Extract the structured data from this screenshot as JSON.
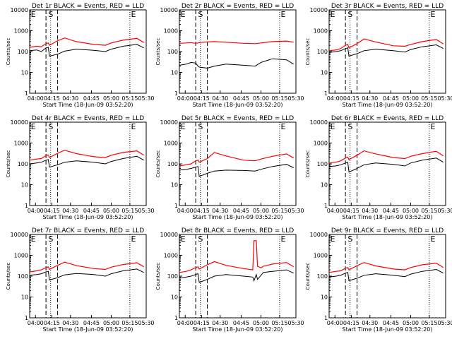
{
  "figure": {
    "xlabel": "Start Time (18-Jun-09 03:52:20)",
    "ylabel": "Counts/sec",
    "colors": {
      "events": "#000000",
      "lld": "#ff0000",
      "frame": "#000000"
    }
  },
  "chart_data": [
    {
      "type": "line",
      "title": "Det 1r BLACK = Events, RED = LLD",
      "x_ticks": [
        "04:00",
        "04:15",
        "04:30",
        "04:45",
        "05:00",
        "05:15",
        "05:30"
      ],
      "y_ticks": [
        "1",
        "10",
        "100",
        "1000",
        "10000"
      ],
      "ylim": [
        1,
        10000
      ],
      "yscale": "log",
      "markers": [
        "E",
        "S",
        "E"
      ],
      "events_series": {
        "name": "Events",
        "x": [
          0,
          6,
          10,
          14,
          16,
          17,
          24,
          30,
          40,
          55,
          65,
          70,
          80,
          92,
          98
        ],
        "y": [
          110,
          120,
          100,
          150,
          160,
          60,
          75,
          105,
          130,
          115,
          100,
          130,
          180,
          220,
          150
        ]
      },
      "lld_series": {
        "name": "LLD",
        "x": [
          0,
          6,
          10,
          14,
          16,
          17,
          24,
          30,
          40,
          55,
          65,
          70,
          80,
          92,
          98
        ],
        "y": [
          160,
          180,
          170,
          240,
          260,
          200,
          330,
          450,
          300,
          220,
          200,
          260,
          350,
          430,
          270
        ]
      }
    },
    {
      "type": "line",
      "title": "Det 2r BLACK = Events, RED = LLD",
      "x_ticks": [
        "04:00",
        "04:15",
        "04:30",
        "04:45",
        "05:00",
        "05:15",
        "05:30"
      ],
      "y_ticks": [
        "1",
        "10",
        "100",
        "1000",
        "10000"
      ],
      "ylim": [
        1,
        10000
      ],
      "yscale": "log",
      "markers": [
        "E",
        "S",
        "E"
      ],
      "events_series": {
        "name": "Events",
        "x": [
          0,
          6,
          10,
          14,
          16,
          17,
          24,
          30,
          40,
          55,
          65,
          70,
          80,
          92,
          98
        ],
        "y": [
          22,
          25,
          30,
          28,
          20,
          18,
          16,
          20,
          25,
          22,
          20,
          30,
          45,
          40,
          25
        ]
      },
      "lld_series": {
        "name": "LLD",
        "x": [
          0,
          6,
          10,
          14,
          16,
          17,
          24,
          30,
          40,
          55,
          65,
          70,
          80,
          92,
          98
        ],
        "y": [
          250,
          260,
          270,
          250,
          260,
          270,
          290,
          300,
          280,
          250,
          240,
          260,
          300,
          320,
          280
        ]
      }
    },
    {
      "type": "line",
      "title": "Det 3r BLACK = Events, RED = LLD",
      "x_ticks": [
        "04:00",
        "04:15",
        "04:30",
        "04:45",
        "05:00",
        "05:15",
        "05:30"
      ],
      "y_ticks": [
        "1",
        "10",
        "100",
        "1000",
        "10000"
      ],
      "ylim": [
        1,
        10000
      ],
      "yscale": "log",
      "markers": [
        "E",
        "S",
        "E"
      ],
      "events_series": {
        "name": "Events",
        "x": [
          0,
          6,
          10,
          14,
          16,
          17,
          24,
          30,
          40,
          55,
          65,
          70,
          80,
          92,
          98
        ],
        "y": [
          90,
          100,
          110,
          140,
          150,
          60,
          80,
          110,
          130,
          110,
          95,
          125,
          170,
          210,
          140
        ]
      },
      "lld_series": {
        "name": "LLD",
        "x": [
          0,
          6,
          10,
          14,
          16,
          17,
          24,
          30,
          40,
          55,
          65,
          70,
          80,
          92,
          98
        ],
        "y": [
          110,
          120,
          140,
          200,
          220,
          150,
          240,
          400,
          290,
          190,
          180,
          220,
          300,
          380,
          230
        ]
      }
    },
    {
      "type": "line",
      "title": "Det 4r BLACK = Events, RED = LLD",
      "x_ticks": [
        "04:00",
        "04:15",
        "04:30",
        "04:45",
        "05:00",
        "05:15",
        "05:30"
      ],
      "y_ticks": [
        "1",
        "10",
        "100",
        "1000",
        "10000"
      ],
      "ylim": [
        1,
        10000
      ],
      "yscale": "log",
      "markers": [
        "E",
        "S",
        "E"
      ],
      "events_series": {
        "name": "Events",
        "x": [
          0,
          6,
          10,
          14,
          16,
          17,
          24,
          30,
          40,
          55,
          65,
          70,
          80,
          92,
          98
        ],
        "y": [
          100,
          110,
          120,
          150,
          160,
          70,
          90,
          120,
          140,
          120,
          100,
          130,
          180,
          230,
          150
        ]
      },
      "lld_series": {
        "name": "LLD",
        "x": [
          0,
          6,
          10,
          14,
          16,
          17,
          24,
          30,
          40,
          55,
          65,
          70,
          80,
          92,
          98
        ],
        "y": [
          150,
          170,
          180,
          250,
          270,
          200,
          320,
          450,
          310,
          220,
          200,
          260,
          350,
          420,
          260
        ]
      }
    },
    {
      "type": "line",
      "title": "Det 5r BLACK = Events, RED = LLD",
      "x_ticks": [
        "04:00",
        "04:15",
        "04:30",
        "04:45",
        "05:00",
        "05:15",
        "05:30"
      ],
      "y_ticks": [
        "1",
        "10",
        "100",
        "1000",
        "10000"
      ],
      "ylim": [
        1,
        10000
      ],
      "yscale": "log",
      "markers": [
        "E",
        "S",
        "E"
      ],
      "events_series": {
        "name": "Events",
        "x": [
          0,
          6,
          10,
          14,
          16,
          17,
          24,
          30,
          40,
          55,
          65,
          70,
          80,
          92,
          98
        ],
        "y": [
          50,
          55,
          60,
          70,
          75,
          25,
          35,
          45,
          50,
          48,
          45,
          55,
          75,
          95,
          65
        ]
      },
      "lld_series": {
        "name": "LLD",
        "x": [
          0,
          6,
          10,
          14,
          16,
          17,
          24,
          30,
          40,
          55,
          65,
          70,
          80,
          92,
          98
        ],
        "y": [
          80,
          90,
          100,
          140,
          150,
          120,
          180,
          350,
          240,
          150,
          140,
          170,
          230,
          300,
          190
        ]
      }
    },
    {
      "type": "line",
      "title": "Det 6r BLACK = Events, RED = LLD",
      "x_ticks": [
        "04:00",
        "04:15",
        "04:30",
        "04:45",
        "05:00",
        "05:15",
        "05:30"
      ],
      "y_ticks": [
        "1",
        "10",
        "100",
        "1000",
        "10000"
      ],
      "ylim": [
        1,
        10000
      ],
      "yscale": "log",
      "markers": [
        "E",
        "S",
        "E"
      ],
      "events_series": {
        "name": "Events",
        "x": [
          0,
          6,
          10,
          14,
          16,
          17,
          24,
          30,
          40,
          55,
          65,
          70,
          80,
          92,
          98
        ],
        "y": [
          75,
          80,
          90,
          110,
          120,
          40,
          60,
          90,
          110,
          95,
          80,
          110,
          150,
          190,
          120
        ]
      },
      "lld_series": {
        "name": "LLD",
        "x": [
          0,
          6,
          10,
          14,
          16,
          17,
          24,
          30,
          40,
          55,
          65,
          70,
          80,
          92,
          98
        ],
        "y": [
          110,
          120,
          140,
          190,
          210,
          160,
          260,
          420,
          300,
          200,
          180,
          230,
          310,
          400,
          240
        ]
      }
    },
    {
      "type": "line",
      "title": "Det 7r BLACK = Events, RED = LLD",
      "x_ticks": [
        "04:00",
        "04:15",
        "04:30",
        "04:45",
        "05:00",
        "05:15",
        "05:30"
      ],
      "y_ticks": [
        "1",
        "10",
        "100",
        "1000",
        "10000"
      ],
      "ylim": [
        1,
        10000
      ],
      "yscale": "log",
      "markers": [
        "E",
        "S",
        "E"
      ],
      "events_series": {
        "name": "Events",
        "x": [
          0,
          6,
          10,
          14,
          16,
          17,
          24,
          30,
          40,
          55,
          65,
          70,
          80,
          92,
          98
        ],
        "y": [
          110,
          120,
          130,
          160,
          170,
          65,
          85,
          115,
          135,
          120,
          100,
          130,
          180,
          220,
          150
        ]
      },
      "lld_series": {
        "name": "LLD",
        "x": [
          0,
          6,
          10,
          14,
          16,
          17,
          24,
          30,
          40,
          55,
          65,
          70,
          80,
          92,
          98
        ],
        "y": [
          160,
          180,
          200,
          260,
          280,
          210,
          330,
          470,
          320,
          230,
          210,
          270,
          360,
          440,
          280
        ]
      }
    },
    {
      "type": "line",
      "title": "Det 8r BLACK = Events, RED = LLD",
      "x_ticks": [
        "04:00",
        "04:15",
        "04:30",
        "04:45",
        "05:00",
        "05:15",
        "05:30"
      ],
      "y_ticks": [
        "1",
        "10",
        "100",
        "1000",
        "10000"
      ],
      "ylim": [
        1,
        10000
      ],
      "yscale": "log",
      "markers": [
        "E",
        "S",
        "E"
      ],
      "events_series": {
        "name": "Events",
        "x": [
          0,
          6,
          10,
          14,
          16,
          17,
          24,
          30,
          40,
          55,
          63,
          64,
          66,
          67,
          70,
          72,
          80,
          92,
          98
        ],
        "y": [
          80,
          90,
          100,
          120,
          130,
          50,
          70,
          100,
          120,
          100,
          90,
          60,
          120,
          70,
          110,
          150,
          170,
          200,
          140
        ]
      },
      "lld_series": {
        "name": "LLD",
        "x": [
          0,
          6,
          10,
          14,
          16,
          17,
          24,
          30,
          40,
          55,
          63,
          64,
          66,
          67,
          70,
          72,
          80,
          92,
          98
        ],
        "y": [
          150,
          170,
          200,
          260,
          280,
          220,
          350,
          500,
          330,
          230,
          200,
          5000,
          5000,
          300,
          250,
          300,
          380,
          450,
          280
        ]
      }
    },
    {
      "type": "line",
      "title": "Det 9r BLACK = Events, RED = LLD",
      "x_ticks": [
        "04:00",
        "04:15",
        "04:30",
        "04:45",
        "05:00",
        "05:15",
        "05:30"
      ],
      "y_ticks": [
        "1",
        "10",
        "100",
        "1000",
        "10000"
      ],
      "ylim": [
        1,
        10000
      ],
      "yscale": "log",
      "markers": [
        "E",
        "S",
        "E"
      ],
      "events_series": {
        "name": "Events",
        "x": [
          0,
          6,
          10,
          14,
          16,
          17,
          24,
          30,
          40,
          55,
          65,
          70,
          80,
          92,
          98
        ],
        "y": [
          90,
          100,
          110,
          140,
          150,
          60,
          80,
          110,
          130,
          110,
          95,
          125,
          170,
          210,
          140
        ]
      },
      "lld_series": {
        "name": "LLD",
        "x": [
          0,
          6,
          10,
          14,
          16,
          17,
          24,
          30,
          40,
          55,
          65,
          70,
          80,
          92,
          98
        ],
        "y": [
          150,
          170,
          180,
          240,
          260,
          200,
          320,
          450,
          310,
          220,
          200,
          260,
          350,
          420,
          260
        ]
      }
    }
  ]
}
